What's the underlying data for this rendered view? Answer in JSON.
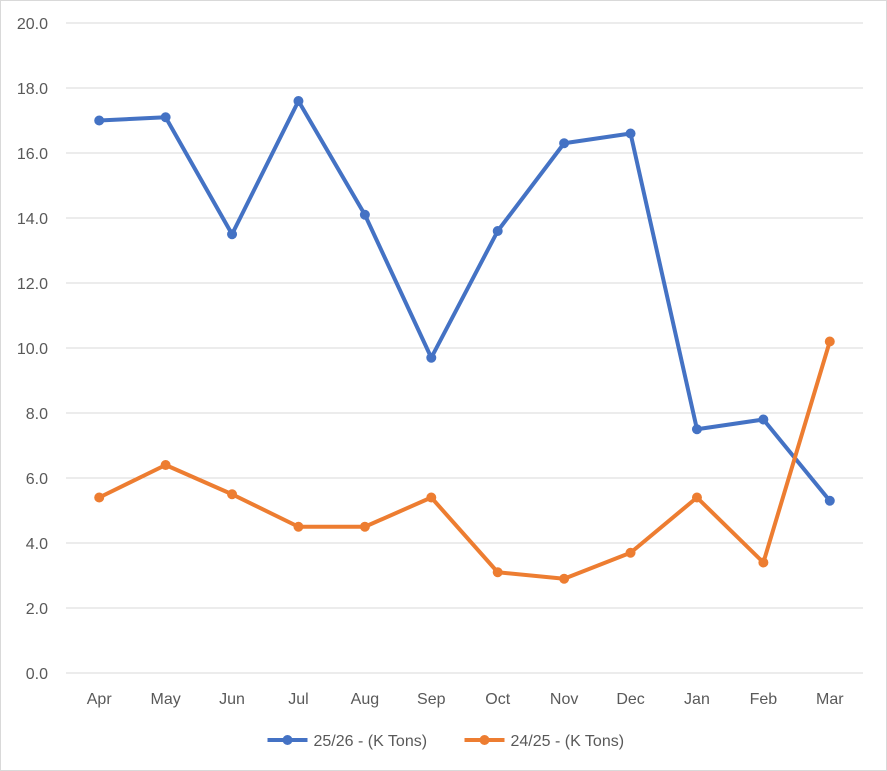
{
  "chart_data": {
    "type": "line",
    "categories": [
      "Apr",
      "May",
      "Jun",
      "Jul",
      "Aug",
      "Sep",
      "Oct",
      "Nov",
      "Dec",
      "Jan",
      "Feb",
      "Mar"
    ],
    "series": [
      {
        "name": "25/26 - (K Tons)",
        "color": "#4472c4",
        "values": [
          17.0,
          17.1,
          13.5,
          17.6,
          14.1,
          9.7,
          13.6,
          16.3,
          16.6,
          7.5,
          7.8,
          5.3
        ]
      },
      {
        "name": "24/25 - (K Tons)",
        "color": "#ed7d31",
        "values": [
          5.4,
          6.4,
          5.5,
          4.5,
          4.5,
          5.4,
          3.1,
          2.9,
          3.7,
          5.4,
          3.4,
          10.2
        ]
      }
    ],
    "yticks": [
      "0.0",
      "2.0",
      "4.0",
      "6.0",
      "8.0",
      "10.0",
      "12.0",
      "14.0",
      "16.0",
      "18.0",
      "20.0"
    ],
    "ylim": [
      0,
      20
    ],
    "grid": true,
    "legend_position": "bottom",
    "gridline_color": "#d9d9d9"
  }
}
